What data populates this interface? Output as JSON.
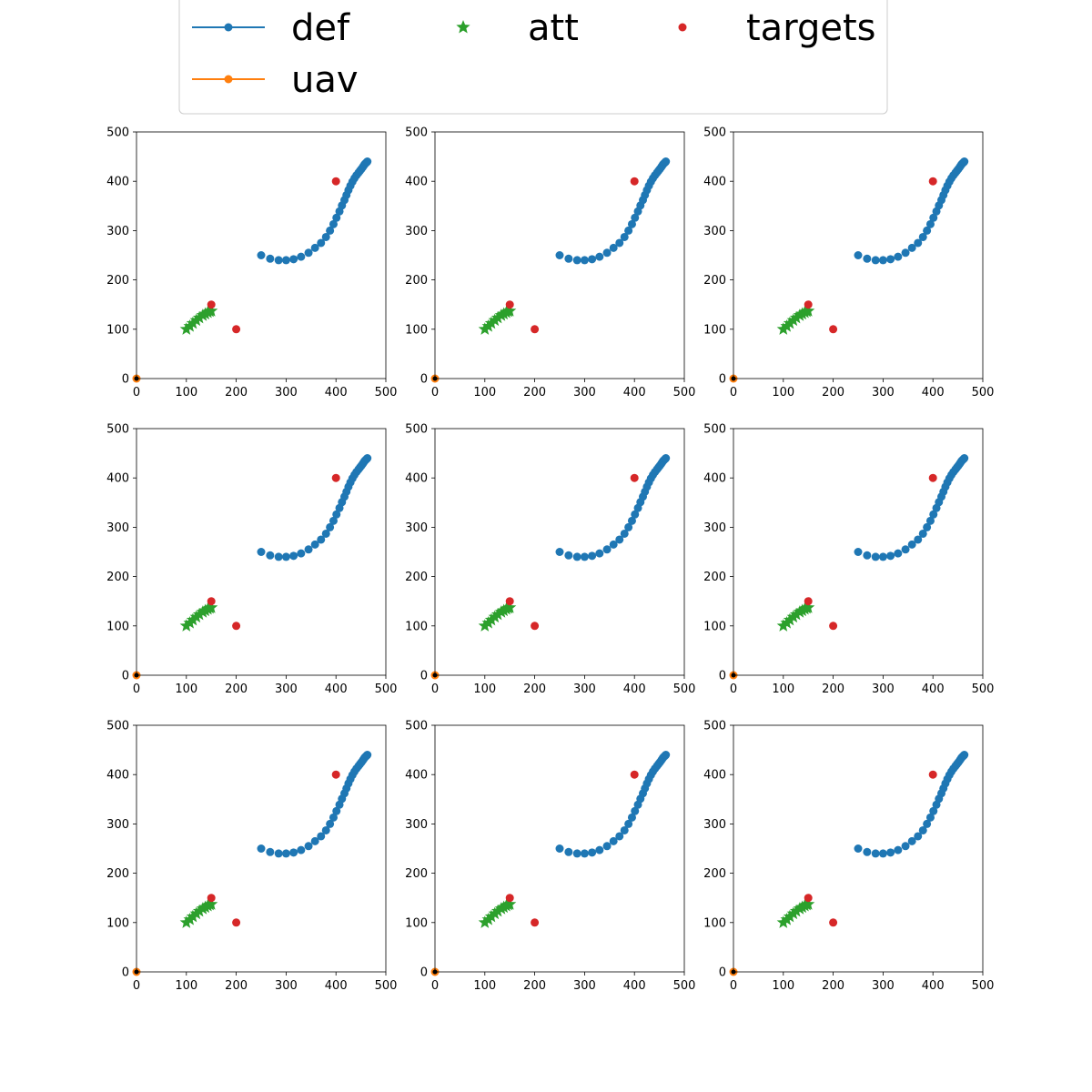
{
  "colors": {
    "def": "#1f77b4",
    "uav": "#ff7f0e",
    "att": "#2ca02c",
    "targets": "#d62728",
    "origin": "#000000"
  },
  "legend": {
    "entries": [
      {
        "key": "def",
        "label": "def",
        "marker": "line-circle"
      },
      {
        "key": "att",
        "label": "att",
        "marker": "star"
      },
      {
        "key": "targets",
        "label": "targets",
        "marker": "circle"
      },
      {
        "key": "uav",
        "label": "uav",
        "marker": "line-circle"
      }
    ]
  },
  "chart_data": {
    "type": "scatter",
    "grid": false,
    "layout": "3x3 small multiples",
    "legend_position": "top-center",
    "panel_count": 9,
    "xlim": [
      0,
      500
    ],
    "ylim": [
      0,
      500
    ],
    "xticks": [
      0,
      100,
      200,
      300,
      400,
      500
    ],
    "yticks": [
      0,
      100,
      200,
      300,
      400,
      500
    ],
    "xticklabels": [
      "0",
      "100",
      "200",
      "300",
      "400",
      "500"
    ],
    "yticklabels": [
      "0",
      "100",
      "200",
      "300",
      "400",
      "500"
    ],
    "series": [
      {
        "name": "def",
        "marker": "circle",
        "x": [
          250,
          268,
          285,
          300,
          315,
          330,
          345,
          358,
          370,
          380,
          388,
          395,
          401,
          407,
          412,
          417,
          421,
          425,
          429,
          433,
          437,
          441,
          445,
          448,
          451,
          454,
          456,
          458,
          460,
          462,
          463
        ],
        "y": [
          250,
          243,
          240,
          240,
          242,
          247,
          255,
          265,
          275,
          287,
          300,
          313,
          326,
          339,
          351,
          362,
          372,
          382,
          391,
          399,
          406,
          412,
          417,
          421,
          425,
          429,
          432,
          435,
          437,
          439,
          440
        ]
      },
      {
        "name": "uav",
        "marker": "circle",
        "x": [
          0
        ],
        "y": [
          0
        ]
      },
      {
        "name": "att",
        "marker": "star",
        "x": [
          100,
          107,
          113,
          120,
          126,
          133,
          138,
          143,
          147,
          150
        ],
        "y": [
          100,
          106,
          112,
          118,
          123,
          128,
          131,
          134,
          136,
          137
        ]
      },
      {
        "name": "targets",
        "marker": "circle",
        "x": [
          400,
          150,
          200
        ],
        "y": [
          400,
          150,
          100
        ]
      }
    ]
  }
}
